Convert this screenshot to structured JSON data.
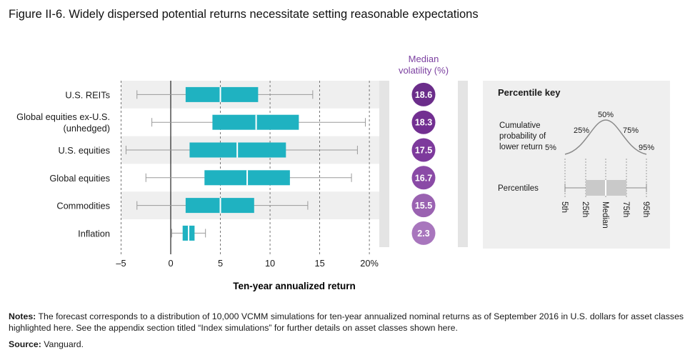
{
  "figure": {
    "title": "Figure II-6. Widely dispersed potential returns necessitate setting reasonable expectations",
    "notes_label": "Notes:",
    "notes_text": "The forecast corresponds to a distribution of 10,000 VCMM simulations for ten-year annualized nominal returns as of September 2016 in U.S. dollars for asset classes highlighted here. See the appendix section titled “Index simulations” for further details on asset classes shown here.",
    "source_label": "Source:",
    "source_text": "Vanguard."
  },
  "chart_data": {
    "type": "box",
    "xlabel": "Ten-year annualized return",
    "xlim": [
      -5,
      21
    ],
    "xticks": [
      -5,
      0,
      5,
      10,
      15,
      20
    ],
    "xtick_labels": [
      "–5",
      "0",
      "5",
      "10",
      "15",
      "20%"
    ],
    "volatility_header": [
      "Median",
      "volatility (%)"
    ],
    "series": [
      {
        "category": "U.S. REITs",
        "category_lines": [
          "U.S. REITs"
        ],
        "p5": -3.4,
        "p25": 1.5,
        "median": 5.0,
        "p75": 8.8,
        "p95": 14.3,
        "volatility": "18.6",
        "color": "#6b2d8a"
      },
      {
        "category": "Global equities ex-U.S. (unhedged)",
        "category_lines": [
          "Global equities ex-U.S.",
          "(unhedged)"
        ],
        "p5": -1.9,
        "p25": 4.2,
        "median": 8.6,
        "p75": 12.9,
        "p95": 19.6,
        "volatility": "18.3",
        "color": "#722f91"
      },
      {
        "category": "U.S. equities",
        "category_lines": [
          "U.S. equities"
        ],
        "p5": -4.5,
        "p25": 1.9,
        "median": 6.7,
        "p75": 11.6,
        "p95": 18.8,
        "volatility": "17.5",
        "color": "#7d3a9c"
      },
      {
        "category": "Global equities",
        "category_lines": [
          "Global equities"
        ],
        "p5": -2.5,
        "p25": 3.4,
        "median": 7.7,
        "p75": 12.0,
        "p95": 18.2,
        "volatility": "16.7",
        "color": "#8a4aa6"
      },
      {
        "category": "Commodities",
        "category_lines": [
          "Commodities"
        ],
        "p5": -3.4,
        "p25": 1.5,
        "median": 5.0,
        "p75": 8.4,
        "p95": 13.8,
        "volatility": "15.5",
        "color": "#9a62b1"
      },
      {
        "category": "Inflation",
        "category_lines": [
          "Inflation"
        ],
        "p5": 0.1,
        "p25": 1.2,
        "median": 1.8,
        "p75": 2.4,
        "p95": 3.5,
        "volatility": "2.3",
        "color": "#a876bd"
      }
    ],
    "colors": {
      "box": "#1fb2c1",
      "whisker": "#9a9a9a",
      "band": "#efefef",
      "grid": "#555555"
    }
  },
  "percentile_key": {
    "title": "Percentile key",
    "cumulative_label": [
      "Cumulative",
      "probability of",
      "lower return"
    ],
    "curve_labels": [
      "5%",
      "25%",
      "50%",
      "75%",
      "95%"
    ],
    "percentiles_label": "Percentiles",
    "tick_labels": [
      "5th",
      "25th",
      "Median",
      "75th",
      "95th"
    ]
  }
}
